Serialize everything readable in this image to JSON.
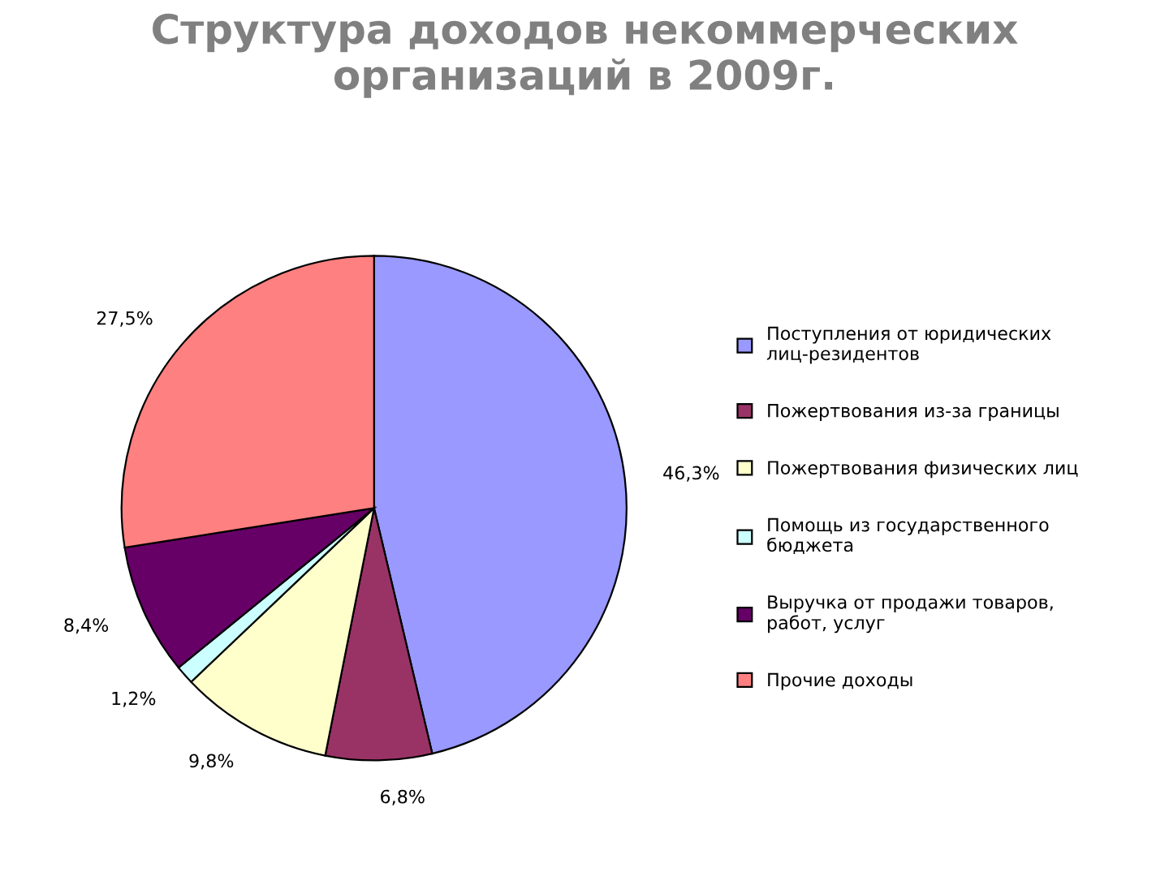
{
  "chart_data": {
    "type": "pie",
    "title": "Структура доходов некоммерческих организаций в 2009г.",
    "categories": [
      "Поступления от юридических лиц-резидентов",
      "Пожертвования из-за границы",
      "Пожертвования физических лиц",
      "Помощь из государственного бюджета",
      "Выручка от продажи товаров, работ, услуг",
      "Прочие доходы"
    ],
    "values": [
      46.3,
      6.8,
      9.8,
      1.2,
      8.4,
      27.5
    ],
    "value_labels": [
      "46,3%",
      "6,8%",
      "9,8%",
      "1,2%",
      "8,4%",
      "27,5%"
    ],
    "colors": [
      "#9999ff",
      "#993366",
      "#ffffcc",
      "#ccffff",
      "#660066",
      "#ff8080"
    ],
    "legend": "right"
  }
}
